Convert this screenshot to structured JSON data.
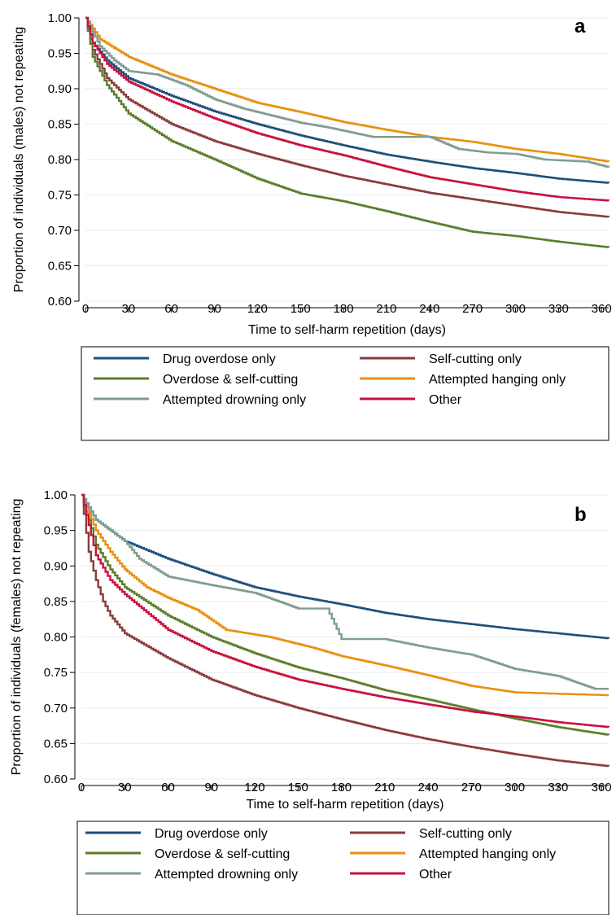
{
  "colors": {
    "drug_overdose": "#1f4e79",
    "self_cutting": "#8b3a3a",
    "overdose_self_cutting": "#5a7d2a",
    "attempted_hanging": "#e8900e",
    "attempted_drowning": "#7f9c8f",
    "other": "#c8103e",
    "grid": "#e6ebf0"
  },
  "chart_data": [
    {
      "type": "line",
      "panel_letter": "a",
      "xlabel": "Time to self-harm repetition (days)",
      "ylabel": "Proportion of individuals (males) not repeating",
      "xlim": [
        0,
        365
      ],
      "ylim": [
        0.6,
        1.0
      ],
      "xticks": [
        "0",
        "30",
        "60",
        "90",
        "120",
        "150",
        "180",
        "210",
        "240",
        "270",
        "300",
        "330",
        "360"
      ],
      "yticks": [
        "0.60",
        "0.65",
        "0.70",
        "0.75",
        "0.80",
        "0.85",
        "0.90",
        "0.95",
        "1.00"
      ],
      "grid": true,
      "legend": "below",
      "series": [
        {
          "name": "Drug overdose only",
          "color_key": "drug_overdose",
          "points": [
            [
              0,
              1.0
            ],
            [
              5,
              0.965
            ],
            [
              15,
              0.94
            ],
            [
              30,
              0.915
            ],
            [
              60,
              0.89
            ],
            [
              90,
              0.868
            ],
            [
              120,
              0.85
            ],
            [
              150,
              0.834
            ],
            [
              180,
              0.82
            ],
            [
              210,
              0.807
            ],
            [
              240,
              0.797
            ],
            [
              270,
              0.788
            ],
            [
              300,
              0.781
            ],
            [
              330,
              0.773
            ],
            [
              365,
              0.767
            ]
          ]
        },
        {
          "name": "Self-cutting only",
          "color_key": "self_cutting",
          "points": [
            [
              0,
              1.0
            ],
            [
              5,
              0.955
            ],
            [
              15,
              0.915
            ],
            [
              30,
              0.885
            ],
            [
              60,
              0.85
            ],
            [
              90,
              0.826
            ],
            [
              120,
              0.808
            ],
            [
              150,
              0.792
            ],
            [
              180,
              0.777
            ],
            [
              210,
              0.765
            ],
            [
              240,
              0.753
            ],
            [
              270,
              0.744
            ],
            [
              300,
              0.735
            ],
            [
              330,
              0.726
            ],
            [
              365,
              0.719
            ]
          ]
        },
        {
          "name": "Overdose & self-cutting",
          "color_key": "overdose_self_cutting",
          "points": [
            [
              0,
              1.0
            ],
            [
              5,
              0.945
            ],
            [
              15,
              0.905
            ],
            [
              30,
              0.865
            ],
            [
              60,
              0.826
            ],
            [
              90,
              0.8
            ],
            [
              120,
              0.773
            ],
            [
              150,
              0.752
            ],
            [
              180,
              0.741
            ],
            [
              210,
              0.727
            ],
            [
              240,
              0.712
            ],
            [
              270,
              0.698
            ],
            [
              300,
              0.692
            ],
            [
              330,
              0.684
            ],
            [
              365,
              0.676
            ]
          ]
        },
        {
          "name": "Attempted hanging only",
          "color_key": "attempted_hanging",
          "points": [
            [
              0,
              1.0
            ],
            [
              10,
              0.97
            ],
            [
              30,
              0.945
            ],
            [
              60,
              0.92
            ],
            [
              90,
              0.9
            ],
            [
              120,
              0.88
            ],
            [
              150,
              0.867
            ],
            [
              180,
              0.853
            ],
            [
              210,
              0.842
            ],
            [
              240,
              0.832
            ],
            [
              270,
              0.825
            ],
            [
              300,
              0.815
            ],
            [
              330,
              0.808
            ],
            [
              365,
              0.797
            ]
          ]
        },
        {
          "name": "Attempted drowning only",
          "color_key": "attempted_drowning",
          "points": [
            [
              0,
              1.0
            ],
            [
              10,
              0.96
            ],
            [
              20,
              0.94
            ],
            [
              30,
              0.925
            ],
            [
              50,
              0.92
            ],
            [
              70,
              0.905
            ],
            [
              90,
              0.885
            ],
            [
              110,
              0.872
            ],
            [
              130,
              0.862
            ],
            [
              150,
              0.852
            ],
            [
              170,
              0.845
            ],
            [
              200,
              0.832
            ],
            [
              240,
              0.832
            ],
            [
              260,
              0.815
            ],
            [
              280,
              0.81
            ],
            [
              300,
              0.808
            ],
            [
              320,
              0.8
            ],
            [
              350,
              0.797
            ],
            [
              365,
              0.789
            ]
          ]
        },
        {
          "name": "Other",
          "color_key": "other",
          "points": [
            [
              0,
              1.0
            ],
            [
              5,
              0.965
            ],
            [
              15,
              0.935
            ],
            [
              30,
              0.91
            ],
            [
              60,
              0.882
            ],
            [
              90,
              0.858
            ],
            [
              120,
              0.837
            ],
            [
              150,
              0.82
            ],
            [
              180,
              0.806
            ],
            [
              210,
              0.79
            ],
            [
              240,
              0.775
            ],
            [
              270,
              0.765
            ],
            [
              300,
              0.755
            ],
            [
              330,
              0.747
            ],
            [
              365,
              0.742
            ]
          ]
        }
      ]
    },
    {
      "type": "line",
      "panel_letter": "b",
      "xlabel": "Time to self-harm repetition (days)",
      "ylabel": "Proportion of individuals (females) not repeating",
      "xlim": [
        0,
        365
      ],
      "ylim": [
        0.6,
        1.0
      ],
      "xticks": [
        "0",
        "30",
        "60",
        "90",
        "120",
        "150",
        "180",
        "210",
        "240",
        "270",
        "300",
        "330",
        "360"
      ],
      "yticks": [
        "0.60",
        "0.65",
        "0.70",
        "0.75",
        "0.80",
        "0.85",
        "0.90",
        "0.95",
        "1.00"
      ],
      "grid": true,
      "legend": "below",
      "series": [
        {
          "name": "Drug overdose only",
          "color_key": "drug_overdose",
          "points": [
            [
              0,
              1.0
            ],
            [
              10,
              0.965
            ],
            [
              30,
              0.935
            ],
            [
              60,
              0.91
            ],
            [
              90,
              0.889
            ],
            [
              120,
              0.87
            ],
            [
              150,
              0.857
            ],
            [
              180,
              0.846
            ],
            [
              210,
              0.834
            ],
            [
              240,
              0.825
            ],
            [
              270,
              0.818
            ],
            [
              300,
              0.811
            ],
            [
              330,
              0.805
            ],
            [
              365,
              0.798
            ]
          ]
        },
        {
          "name": "Self-cutting only",
          "color_key": "self_cutting",
          "points": [
            [
              0,
              1.0
            ],
            [
              5,
              0.92
            ],
            [
              10,
              0.88
            ],
            [
              15,
              0.85
            ],
            [
              20,
              0.83
            ],
            [
              30,
              0.805
            ],
            [
              60,
              0.77
            ],
            [
              90,
              0.74
            ],
            [
              120,
              0.718
            ],
            [
              150,
              0.7
            ],
            [
              180,
              0.684
            ],
            [
              210,
              0.669
            ],
            [
              240,
              0.656
            ],
            [
              270,
              0.645
            ],
            [
              300,
              0.635
            ],
            [
              330,
              0.626
            ],
            [
              365,
              0.618
            ]
          ]
        },
        {
          "name": "Overdose & self-cutting",
          "color_key": "overdose_self_cutting",
          "points": [
            [
              0,
              1.0
            ],
            [
              10,
              0.93
            ],
            [
              20,
              0.895
            ],
            [
              30,
              0.87
            ],
            [
              60,
              0.83
            ],
            [
              90,
              0.8
            ],
            [
              120,
              0.777
            ],
            [
              150,
              0.757
            ],
            [
              180,
              0.742
            ],
            [
              210,
              0.725
            ],
            [
              240,
              0.712
            ],
            [
              270,
              0.698
            ],
            [
              300,
              0.685
            ],
            [
              330,
              0.673
            ],
            [
              365,
              0.662
            ]
          ]
        },
        {
          "name": "Attempted hanging only",
          "color_key": "attempted_hanging",
          "points": [
            [
              0,
              1.0
            ],
            [
              10,
              0.95
            ],
            [
              20,
              0.92
            ],
            [
              30,
              0.895
            ],
            [
              45,
              0.87
            ],
            [
              60,
              0.855
            ],
            [
              80,
              0.838
            ],
            [
              100,
              0.81
            ],
            [
              130,
              0.8
            ],
            [
              160,
              0.785
            ],
            [
              180,
              0.773
            ],
            [
              210,
              0.76
            ],
            [
              240,
              0.746
            ],
            [
              270,
              0.731
            ],
            [
              300,
              0.722
            ],
            [
              330,
              0.72
            ],
            [
              365,
              0.718
            ]
          ]
        },
        {
          "name": "Attempted drowning only",
          "color_key": "attempted_drowning",
          "points": [
            [
              0,
              1.0
            ],
            [
              10,
              0.965
            ],
            [
              30,
              0.935
            ],
            [
              40,
              0.91
            ],
            [
              60,
              0.885
            ],
            [
              90,
              0.873
            ],
            [
              120,
              0.862
            ],
            [
              150,
              0.84
            ],
            [
              170,
              0.84
            ],
            [
              180,
              0.797
            ],
            [
              210,
              0.797
            ],
            [
              240,
              0.785
            ],
            [
              270,
              0.775
            ],
            [
              300,
              0.755
            ],
            [
              330,
              0.745
            ],
            [
              355,
              0.727
            ],
            [
              365,
              0.727
            ]
          ]
        },
        {
          "name": "Other",
          "color_key": "other",
          "points": [
            [
              0,
              1.0
            ],
            [
              10,
              0.915
            ],
            [
              20,
              0.88
            ],
            [
              30,
              0.86
            ],
            [
              60,
              0.81
            ],
            [
              90,
              0.78
            ],
            [
              120,
              0.758
            ],
            [
              150,
              0.74
            ],
            [
              180,
              0.727
            ],
            [
              210,
              0.715
            ],
            [
              240,
              0.705
            ],
            [
              270,
              0.695
            ],
            [
              300,
              0.688
            ],
            [
              330,
              0.68
            ],
            [
              365,
              0.673
            ]
          ]
        }
      ]
    }
  ]
}
